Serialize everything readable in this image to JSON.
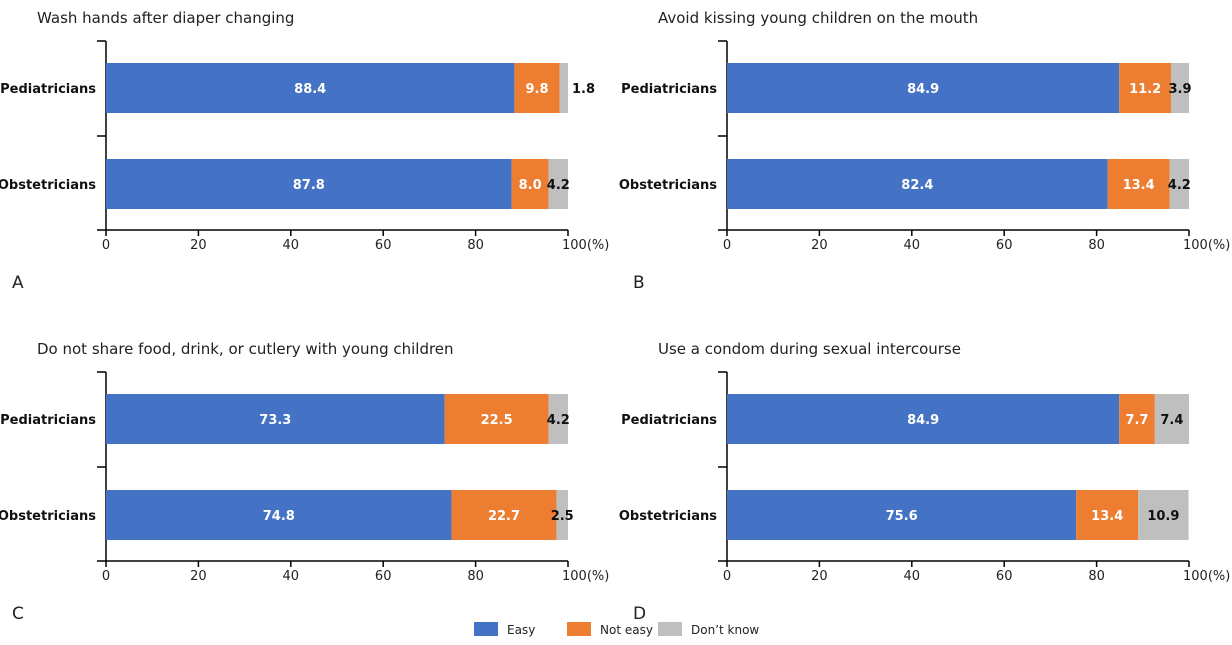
{
  "legend": [
    {
      "label": "Easy",
      "color": "#4472C4"
    },
    {
      "label": "Not easy",
      "color": "#ED7D31"
    },
    {
      "label": "Don’t know",
      "color": "#BFBFBF"
    }
  ],
  "chart_data": [
    {
      "type": "bar",
      "orientation": "horizontal",
      "stacked": true,
      "panel": "A",
      "title": "Wash hands after diaper changing",
      "categories": [
        "Pediatricians",
        "Obstetricians"
      ],
      "series": [
        {
          "name": "Easy",
          "values": [
            88.4,
            87.8
          ]
        },
        {
          "name": "Not easy",
          "values": [
            9.8,
            8.0
          ]
        },
        {
          "name": "Don’t know",
          "values": [
            1.8,
            4.2
          ]
        }
      ],
      "xlim": [
        0,
        100
      ],
      "xticks": [
        "0",
        "20",
        "40",
        "60",
        "80",
        "100(%)"
      ]
    },
    {
      "type": "bar",
      "orientation": "horizontal",
      "stacked": true,
      "panel": "B",
      "title": "Avoid kissing young children on the mouth",
      "categories": [
        "Pediatricians",
        "Obstetricians"
      ],
      "series": [
        {
          "name": "Easy",
          "values": [
            84.9,
            82.4
          ]
        },
        {
          "name": "Not easy",
          "values": [
            11.2,
            13.4
          ]
        },
        {
          "name": "Don’t know",
          "values": [
            3.9,
            4.2
          ]
        }
      ],
      "xlim": [
        0,
        100
      ],
      "xticks": [
        "0",
        "20",
        "40",
        "60",
        "80",
        "100(%)"
      ]
    },
    {
      "type": "bar",
      "orientation": "horizontal",
      "stacked": true,
      "panel": "C",
      "title": "Do not share food, drink, or cutlery with young children",
      "categories": [
        "Pediatricians",
        "Obstetricians"
      ],
      "series": [
        {
          "name": "Easy",
          "values": [
            73.3,
            74.8
          ]
        },
        {
          "name": "Not easy",
          "values": [
            22.5,
            22.7
          ]
        },
        {
          "name": "Don’t know",
          "values": [
            4.2,
            2.5
          ]
        }
      ],
      "xlim": [
        0,
        100
      ],
      "xticks": [
        "0",
        "20",
        "40",
        "60",
        "80",
        "100(%)"
      ]
    },
    {
      "type": "bar",
      "orientation": "horizontal",
      "stacked": true,
      "panel": "D",
      "title": "Use a condom during sexual intercourse",
      "categories": [
        "Pediatricians",
        "Obstetricians"
      ],
      "series": [
        {
          "name": "Easy",
          "values": [
            84.9,
            75.6
          ]
        },
        {
          "name": "Not easy",
          "values": [
            7.7,
            13.4
          ]
        },
        {
          "name": "Don’t know",
          "values": [
            7.4,
            10.9
          ]
        }
      ],
      "xlim": [
        0,
        100
      ],
      "xticks": [
        "0",
        "20",
        "40",
        "60",
        "80",
        "100(%)"
      ]
    }
  ]
}
